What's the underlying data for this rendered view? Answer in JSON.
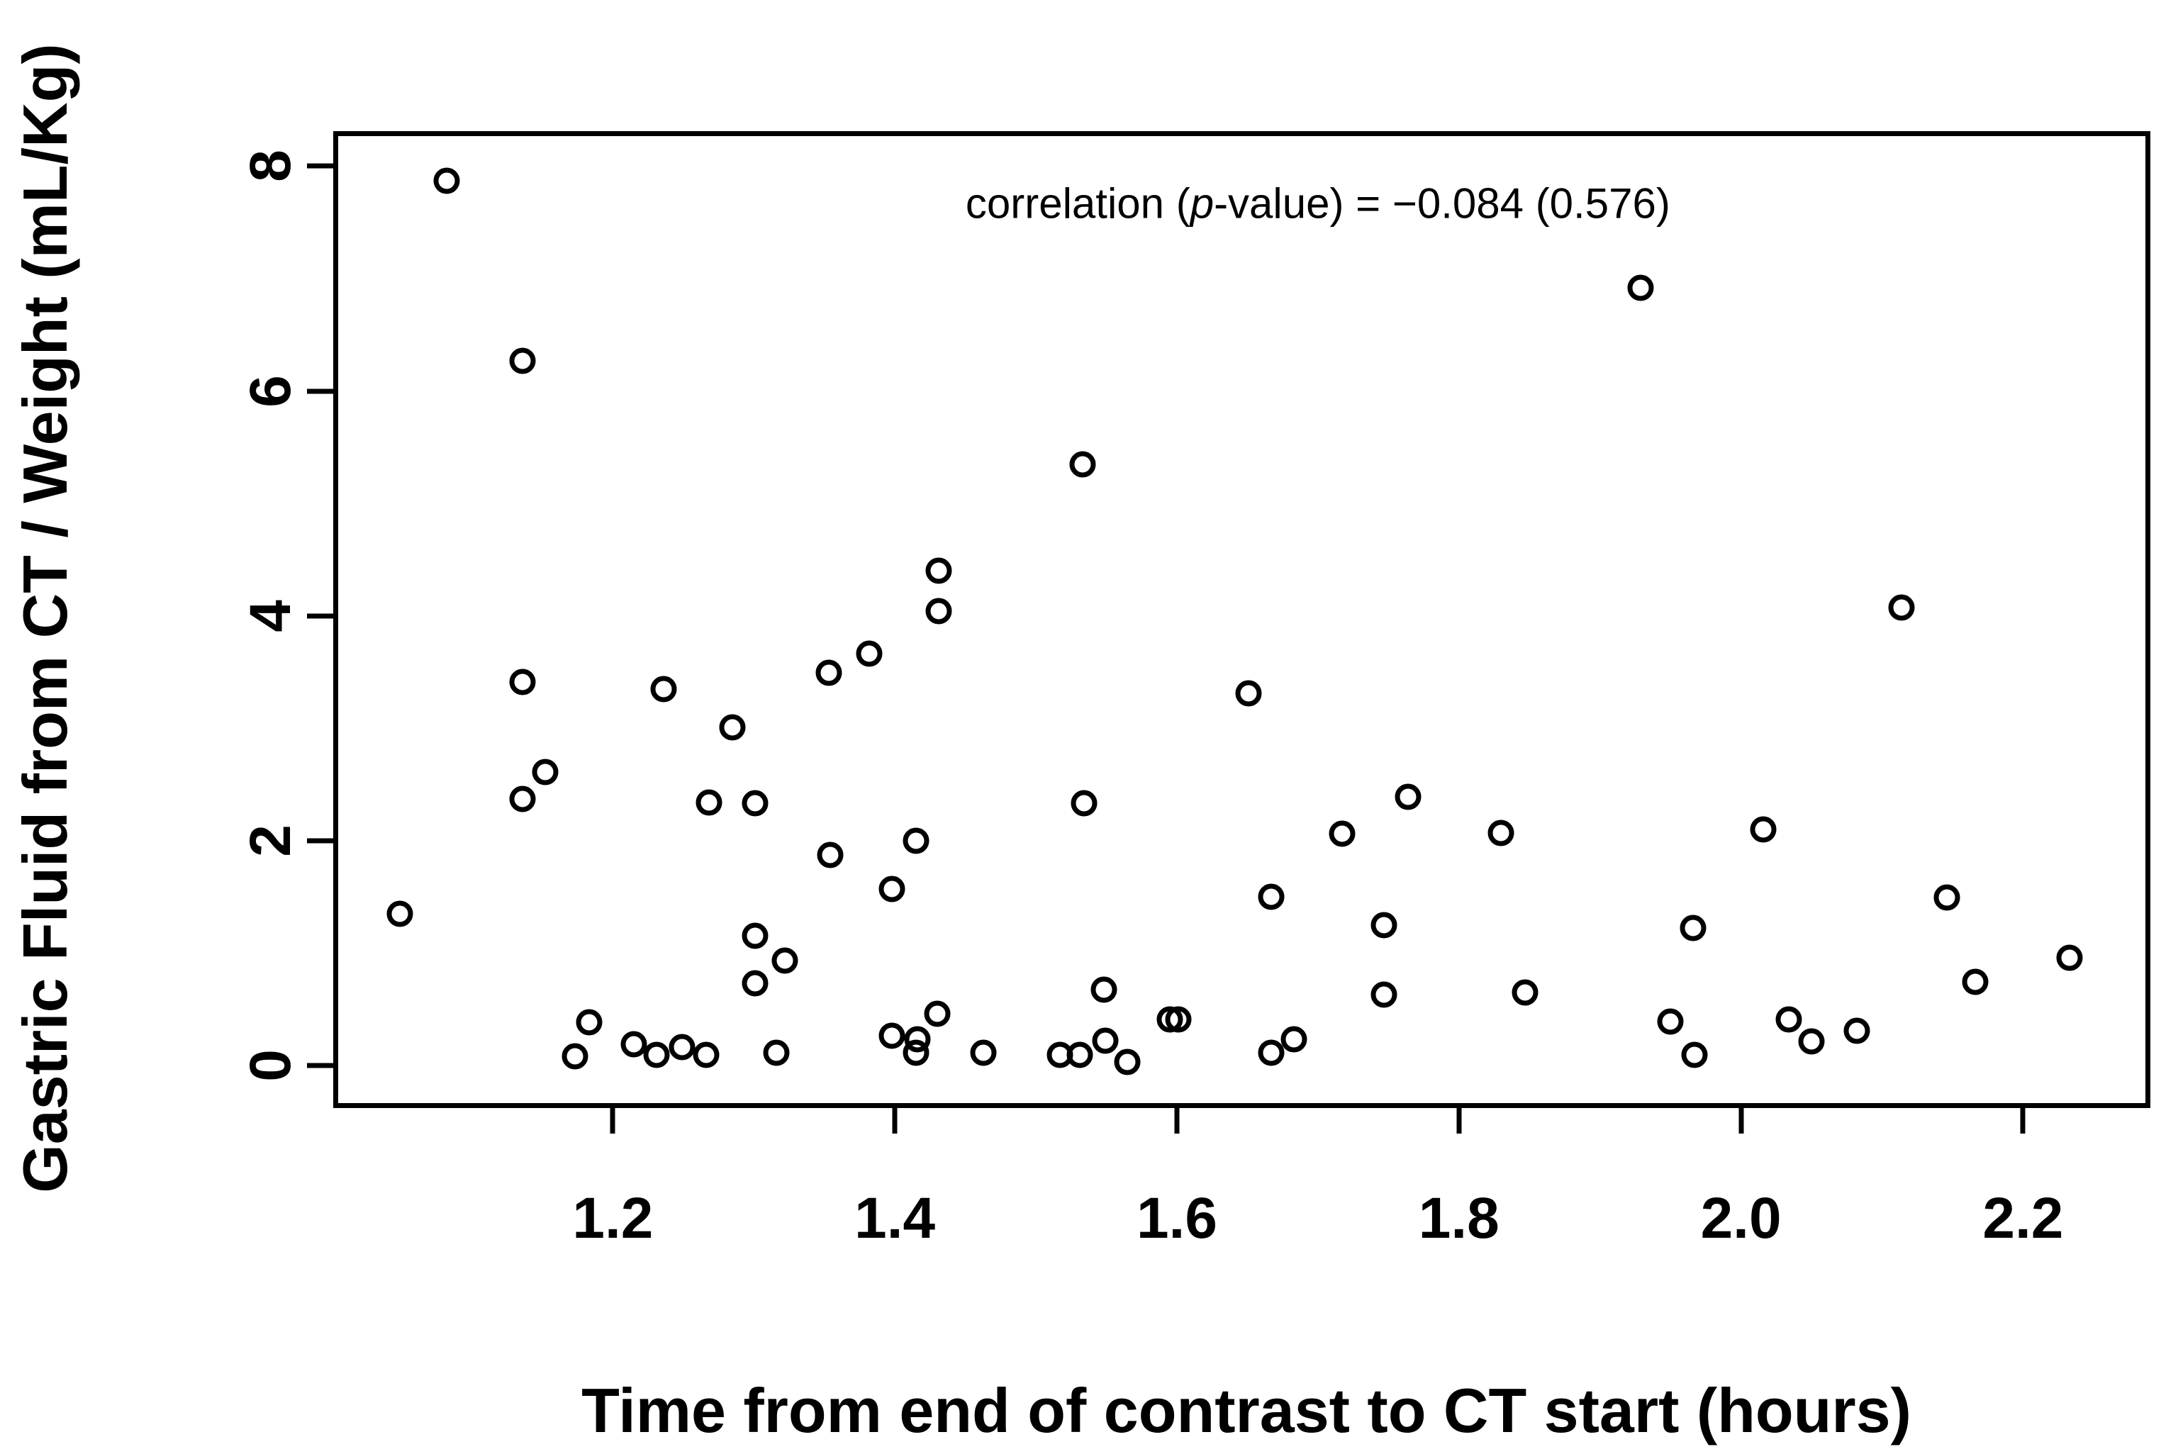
{
  "figure": {
    "background": "#ffffff",
    "foreground": "#000000"
  },
  "chart_data": {
    "type": "scatter",
    "title": "",
    "xlabel": "Time from end of contrast to CT start (hours)",
    "ylabel": "Gastric Fluid from CT / Weight (mL/Kg)",
    "annotation": {
      "prefix": "correlation (",
      "italic": "p",
      "suffix": "-value) = −0.084 (0.576)",
      "x": 1.7,
      "y": 7.67
    },
    "marker": "open-circle",
    "marker_color": "#000000",
    "grid": false,
    "legend": "none",
    "xlim": [
      1.0035,
      2.2815
    ],
    "ylim": [
      -0.27,
      8.29
    ],
    "xticks": [
      {
        "value": 1.2,
        "label": "1.2"
      },
      {
        "value": 1.4,
        "label": "1.4"
      },
      {
        "value": 1.6,
        "label": "1.6"
      },
      {
        "value": 1.8,
        "label": "1.8"
      },
      {
        "value": 2.0,
        "label": "2.0"
      },
      {
        "value": 2.2,
        "label": "2.2"
      }
    ],
    "yticks": [
      {
        "value": 0,
        "label": "0"
      },
      {
        "value": 2,
        "label": "2"
      },
      {
        "value": 4,
        "label": "4"
      },
      {
        "value": 6,
        "label": "6"
      },
      {
        "value": 8,
        "label": "8"
      }
    ],
    "points": [
      [
        1.082,
        7.87
      ],
      [
        1.136,
        6.27
      ],
      [
        1.533,
        5.35
      ],
      [
        1.431,
        4.4
      ],
      [
        1.431,
        4.04
      ],
      [
        1.929,
        6.92
      ],
      [
        2.114,
        4.07
      ],
      [
        1.136,
        3.41
      ],
      [
        1.236,
        3.35
      ],
      [
        1.285,
        3.01
      ],
      [
        1.353,
        3.49
      ],
      [
        1.152,
        2.61
      ],
      [
        1.136,
        2.37
      ],
      [
        1.268,
        2.34
      ],
      [
        1.301,
        2.33
      ],
      [
        1.354,
        1.87
      ],
      [
        1.049,
        1.35
      ],
      [
        1.301,
        1.15
      ],
      [
        1.322,
        0.93
      ],
      [
        1.301,
        0.73
      ],
      [
        1.183,
        0.38
      ],
      [
        1.173,
        0.08
      ],
      [
        1.215,
        0.19
      ],
      [
        1.231,
        0.09
      ],
      [
        1.249,
        0.16
      ],
      [
        1.266,
        0.09
      ],
      [
        1.316,
        0.11
      ],
      [
        1.398,
        0.26
      ],
      [
        1.416,
        0.23
      ],
      [
        1.415,
        0.11
      ],
      [
        1.43,
        0.46
      ],
      [
        1.463,
        0.11
      ],
      [
        1.382,
        3.66
      ],
      [
        1.651,
        3.31
      ],
      [
        1.534,
        2.33
      ],
      [
        1.415,
        2.0
      ],
      [
        1.717,
        2.06
      ],
      [
        1.398,
        1.57
      ],
      [
        1.667,
        1.5
      ],
      [
        1.548,
        0.67
      ],
      [
        1.517,
        0.09
      ],
      [
        1.531,
        0.09
      ],
      [
        1.549,
        0.22
      ],
      [
        1.565,
        0.03
      ],
      [
        1.595,
        0.41
      ],
      [
        1.601,
        0.41
      ],
      [
        1.667,
        0.11
      ],
      [
        1.683,
        0.23
      ],
      [
        1.764,
        2.39
      ],
      [
        1.83,
        2.07
      ],
      [
        2.016,
        2.1
      ],
      [
        1.747,
        1.25
      ],
      [
        1.966,
        1.22
      ],
      [
        1.747,
        0.63
      ],
      [
        1.847,
        0.65
      ],
      [
        1.95,
        0.39
      ],
      [
        1.967,
        0.09
      ],
      [
        2.034,
        0.41
      ],
      [
        2.05,
        0.21
      ],
      [
        2.082,
        0.31
      ],
      [
        2.146,
        1.49
      ],
      [
        2.233,
        0.96
      ],
      [
        2.166,
        0.74
      ]
    ]
  }
}
